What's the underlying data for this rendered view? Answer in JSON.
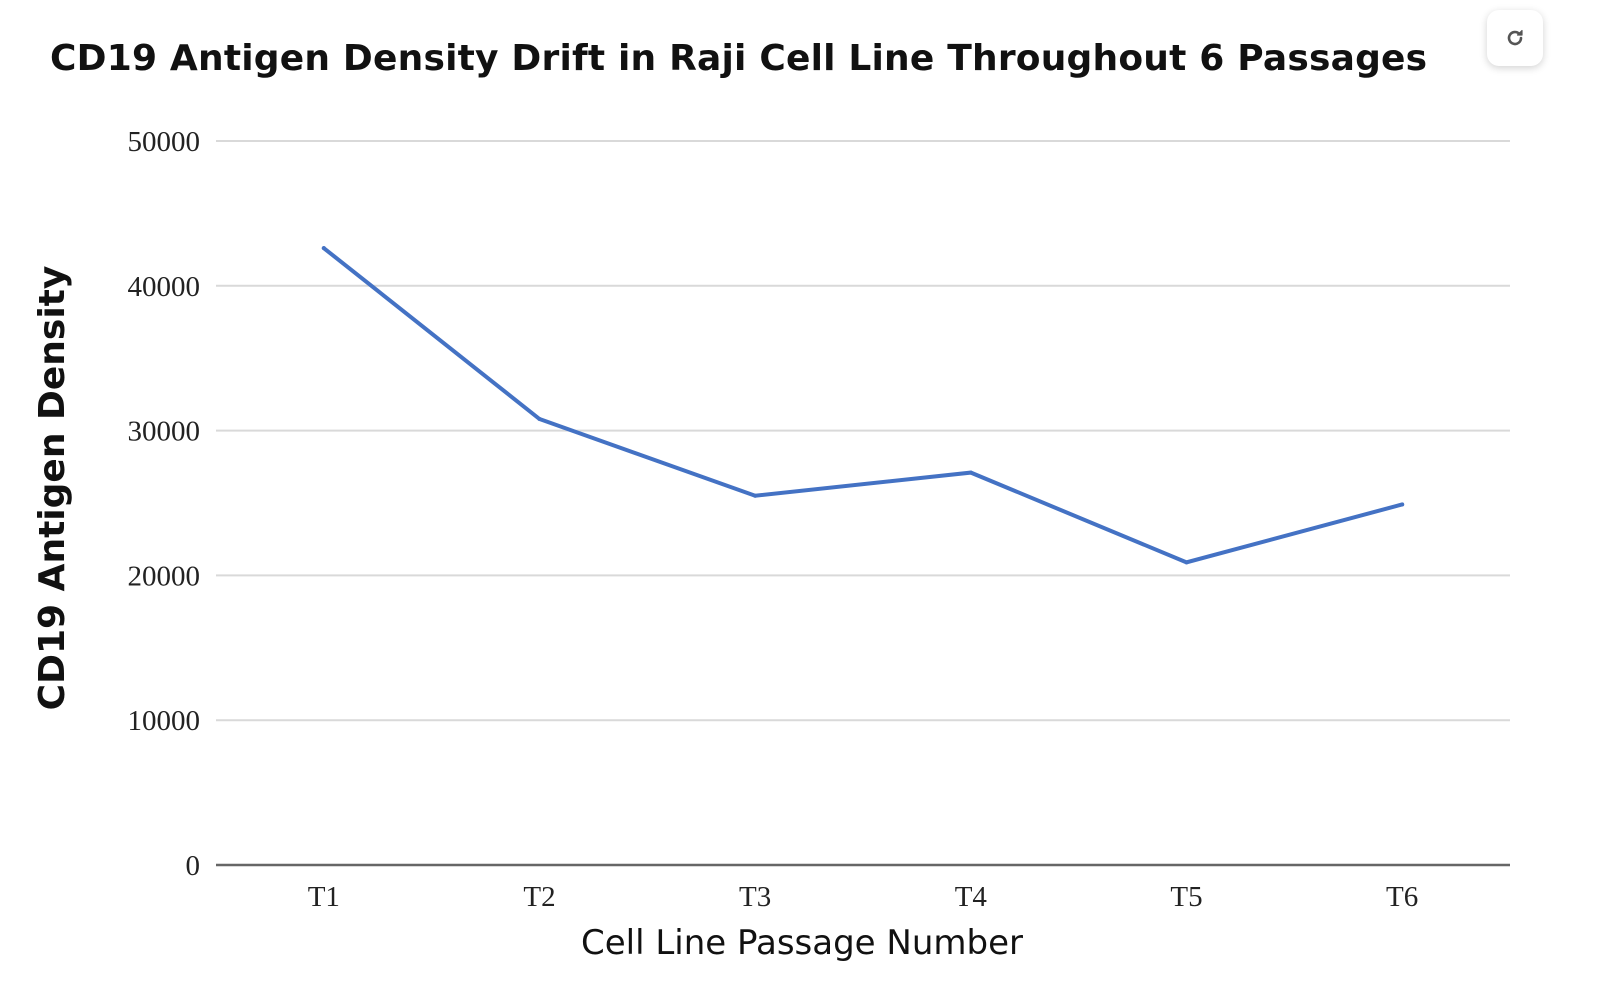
{
  "header": {
    "refresh_icon": "refresh-icon"
  },
  "chart_data": {
    "type": "line",
    "title": "CD19 Antigen Density Drift in Raji Cell Line Throughout 6 Passages",
    "xlabel": "Cell Line Passage Number",
    "ylabel": "CD19 Antigen Density",
    "categories": [
      "T1",
      "T2",
      "T3",
      "T4",
      "T5",
      "T6"
    ],
    "series": [
      {
        "name": "CD19 Antigen Density",
        "color": "#4472C4",
        "values": [
          42600,
          30800,
          25500,
          27100,
          20900,
          24900
        ]
      }
    ],
    "ylim": [
      0,
      50000
    ],
    "yticks": [
      0,
      10000,
      20000,
      30000,
      40000,
      50000
    ],
    "ytick_labels": [
      "0",
      "10000",
      "20000",
      "30000",
      "40000",
      "50000"
    ],
    "grid": true,
    "legend": "none",
    "colors": {
      "line": "#4472C4",
      "grid": "#d9d9d9",
      "axis": "#666666"
    }
  }
}
